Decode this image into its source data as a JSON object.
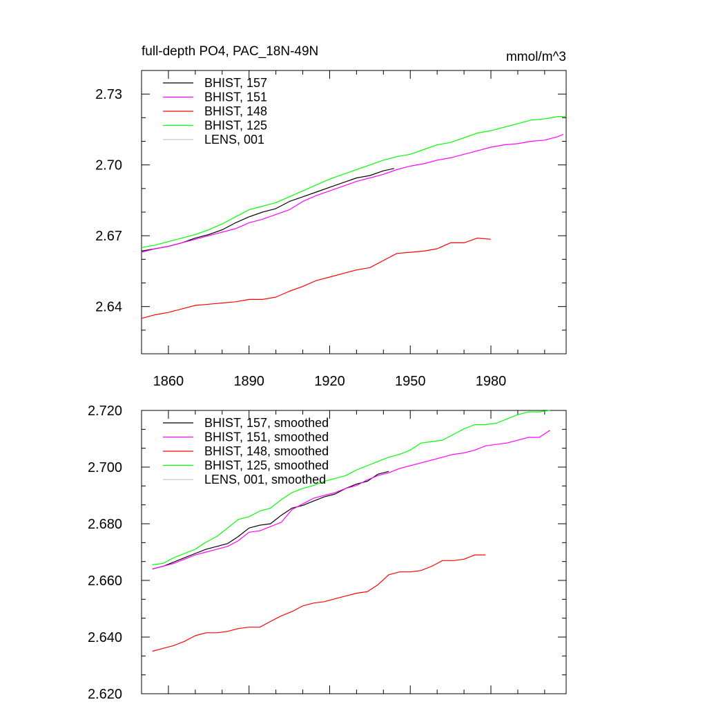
{
  "chart_data": [
    {
      "type": "line",
      "title": "full-depth PO4, PAC_18N-49N",
      "units": "mmol/m^3",
      "xlabel": "",
      "ylabel": "",
      "xlim": [
        1850,
        2008
      ],
      "ylim": [
        2.62,
        2.74
      ],
      "xticks": [
        1860,
        1890,
        1920,
        1950,
        1980
      ],
      "xtick_labels": [
        "1860",
        "1890",
        "1920",
        "1950",
        "1980"
      ],
      "yticks": [
        2.64,
        2.67,
        2.7,
        2.73
      ],
      "ytick_labels": [
        "2.64",
        "2.67",
        "2.70",
        "2.73"
      ],
      "grid": false,
      "legend_position": "top-left",
      "series": [
        {
          "name": "BHIST, 157",
          "color": "#000000",
          "x": [
            1850,
            1855,
            1860,
            1865,
            1870,
            1875,
            1880,
            1885,
            1890,
            1895,
            1900,
            1905,
            1910,
            1915,
            1920,
            1925,
            1930,
            1935,
            1940,
            1944
          ],
          "y": [
            2.6635,
            2.6645,
            2.6655,
            2.667,
            2.669,
            2.6705,
            2.6725,
            2.6755,
            2.678,
            2.68,
            2.6815,
            2.6845,
            2.6865,
            2.6885,
            2.6905,
            2.6925,
            2.6945,
            2.6955,
            2.6975,
            2.6985
          ]
        },
        {
          "name": "BHIST, 151",
          "color": "#ff00ff",
          "x": [
            1850,
            1855,
            1860,
            1865,
            1870,
            1875,
            1880,
            1885,
            1890,
            1895,
            1900,
            1905,
            1910,
            1915,
            1920,
            1925,
            1930,
            1935,
            1940,
            1945,
            1950,
            1955,
            1960,
            1965,
            1970,
            1975,
            1980,
            1985,
            1990,
            1995,
            2000,
            2005,
            2007
          ],
          "y": [
            2.663,
            2.6645,
            2.6655,
            2.667,
            2.6685,
            2.67,
            2.6715,
            2.673,
            2.6755,
            2.677,
            2.679,
            2.681,
            2.6845,
            2.687,
            2.689,
            2.691,
            2.693,
            2.6945,
            2.696,
            2.698,
            2.6995,
            2.7005,
            2.702,
            2.703,
            2.7045,
            2.706,
            2.7075,
            2.7085,
            2.709,
            2.71,
            2.7105,
            2.712,
            2.713
          ]
        },
        {
          "name": "BHIST, 148",
          "color": "#ff0000",
          "x": [
            1850,
            1855,
            1860,
            1865,
            1870,
            1875,
            1880,
            1885,
            1890,
            1895,
            1900,
            1905,
            1910,
            1915,
            1920,
            1925,
            1930,
            1935,
            1940,
            1945,
            1950,
            1955,
            1960,
            1965,
            1970,
            1975,
            1980
          ],
          "y": [
            2.635,
            2.6365,
            2.6375,
            2.639,
            2.6405,
            2.641,
            2.6415,
            2.642,
            2.643,
            2.643,
            2.644,
            2.6465,
            2.6485,
            2.651,
            2.6525,
            2.654,
            2.6555,
            2.6565,
            2.6595,
            2.6625,
            2.663,
            2.6635,
            2.6645,
            2.667,
            2.667,
            2.669,
            2.6685
          ]
        },
        {
          "name": "BHIST, 125",
          "color": "#00ff00",
          "x": [
            1850,
            1855,
            1860,
            1865,
            1870,
            1875,
            1880,
            1885,
            1890,
            1895,
            1900,
            1905,
            1910,
            1915,
            1920,
            1925,
            1930,
            1935,
            1940,
            1945,
            1950,
            1955,
            1960,
            1965,
            1970,
            1975,
            1980,
            1985,
            1990,
            1995,
            2000,
            2005,
            2008
          ],
          "y": [
            2.665,
            2.666,
            2.6675,
            2.669,
            2.6705,
            2.6725,
            2.675,
            2.678,
            2.681,
            2.6825,
            2.684,
            2.6865,
            2.689,
            2.6915,
            2.694,
            2.696,
            2.698,
            2.7,
            2.702,
            2.7035,
            2.7045,
            2.7065,
            2.7085,
            2.7095,
            2.7115,
            2.7135,
            2.7145,
            2.716,
            2.7175,
            2.719,
            2.7195,
            2.7205,
            2.7205
          ]
        },
        {
          "name": "LENS, 001",
          "color": "#c8c8c8",
          "x": [],
          "y": []
        }
      ]
    },
    {
      "type": "line",
      "title": "",
      "xlabel": "",
      "ylabel": "",
      "xlim": [
        1850,
        2008
      ],
      "ylim": [
        2.62,
        2.72
      ],
      "xticks": [
        1860,
        1890,
        1920,
        1950,
        1980
      ],
      "yticks": [
        2.62,
        2.64,
        2.66,
        2.68,
        2.7,
        2.72
      ],
      "ytick_labels": [
        "2.620",
        "2.640",
        "2.660",
        "2.680",
        "2.700",
        "2.720"
      ],
      "grid": false,
      "legend_position": "top-left",
      "series": [
        {
          "name": "BHIST, 157, smoothed",
          "color": "#000000",
          "x": [
            1854,
            1858,
            1862,
            1866,
            1870,
            1874,
            1878,
            1882,
            1886,
            1890,
            1894,
            1898,
            1902,
            1906,
            1910,
            1914,
            1918,
            1922,
            1926,
            1930,
            1934,
            1938,
            1942
          ],
          "y": [
            2.664,
            2.665,
            2.6665,
            2.668,
            2.6695,
            2.671,
            2.672,
            2.673,
            2.6755,
            2.6785,
            2.6795,
            2.68,
            2.683,
            2.6855,
            2.6865,
            2.688,
            2.6895,
            2.6905,
            2.6925,
            2.694,
            2.695,
            2.6975,
            2.6985
          ]
        },
        {
          "name": "BHIST, 151, smoothed",
          "color": "#ff00ff",
          "x": [
            1854,
            1858,
            1862,
            1866,
            1870,
            1874,
            1878,
            1882,
            1886,
            1890,
            1894,
            1898,
            1902,
            1906,
            1910,
            1914,
            1918,
            1922,
            1926,
            1930,
            1934,
            1938,
            1942,
            1946,
            1950,
            1954,
            1958,
            1962,
            1966,
            1970,
            1974,
            1978,
            1982,
            1986,
            1990,
            1994,
            1998,
            2002
          ],
          "y": [
            2.664,
            2.665,
            2.666,
            2.6675,
            2.669,
            2.67,
            2.671,
            2.672,
            2.674,
            2.677,
            2.6775,
            2.679,
            2.6805,
            2.685,
            2.687,
            2.689,
            2.69,
            2.691,
            2.6925,
            2.6935,
            2.6955,
            2.697,
            2.698,
            2.6995,
            2.7005,
            2.7015,
            2.7025,
            2.7035,
            2.7045,
            2.705,
            2.706,
            2.7075,
            2.708,
            2.7085,
            2.7095,
            2.7105,
            2.7105,
            2.713
          ]
        },
        {
          "name": "BHIST, 148, smoothed",
          "color": "#ff0000",
          "x": [
            1854,
            1858,
            1862,
            1866,
            1870,
            1874,
            1878,
            1882,
            1886,
            1890,
            1894,
            1898,
            1902,
            1906,
            1910,
            1914,
            1918,
            1922,
            1926,
            1930,
            1934,
            1938,
            1942,
            1946,
            1950,
            1954,
            1958,
            1962,
            1966,
            1970,
            1974,
            1978
          ],
          "y": [
            2.635,
            2.636,
            2.637,
            2.6385,
            2.6405,
            2.6415,
            2.6415,
            2.642,
            2.643,
            2.6435,
            2.6435,
            2.6455,
            2.6475,
            2.649,
            2.651,
            2.652,
            2.6525,
            2.6535,
            2.6545,
            2.6555,
            2.656,
            2.6585,
            2.662,
            2.663,
            2.663,
            2.6635,
            2.665,
            2.667,
            2.667,
            2.6675,
            2.669,
            2.669
          ]
        },
        {
          "name": "BHIST, 125, smoothed",
          "color": "#00ff00",
          "x": [
            1854,
            1858,
            1862,
            1866,
            1870,
            1874,
            1878,
            1882,
            1886,
            1890,
            1894,
            1898,
            1902,
            1906,
            1910,
            1914,
            1918,
            1922,
            1926,
            1930,
            1934,
            1938,
            1942,
            1946,
            1950,
            1954,
            1958,
            1962,
            1966,
            1970,
            1974,
            1978,
            1982,
            1986,
            1990,
            1994,
            1998,
            2002
          ],
          "y": [
            2.6655,
            2.666,
            2.668,
            2.6695,
            2.671,
            2.6735,
            2.6755,
            2.6785,
            2.6815,
            2.6825,
            2.6845,
            2.6855,
            2.6885,
            2.691,
            2.6925,
            2.6935,
            2.695,
            2.696,
            2.697,
            2.699,
            2.7005,
            2.702,
            2.7035,
            2.7045,
            2.706,
            2.7085,
            2.709,
            2.7095,
            2.7115,
            2.7135,
            2.715,
            2.715,
            2.7155,
            2.717,
            2.7185,
            2.7195,
            2.7195,
            2.72
          ]
        },
        {
          "name": "LENS, 001, smoothed",
          "color": "#c8c8c8",
          "x": [],
          "y": []
        }
      ]
    }
  ]
}
